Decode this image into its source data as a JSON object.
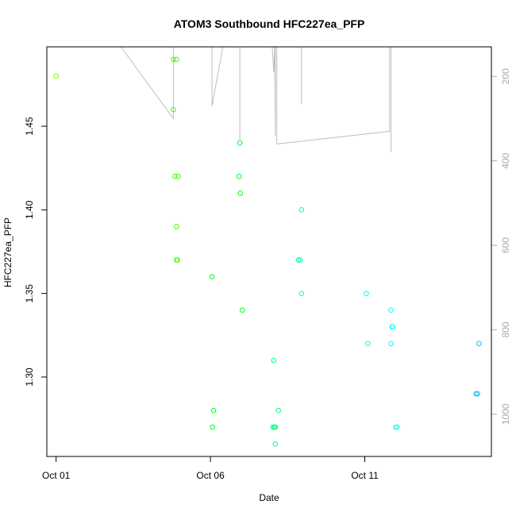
{
  "chart_data": {
    "type": "scatter",
    "title": "ATOM3 Southbound HFC227ea_PFP",
    "xlabel": "Date",
    "ylabel": "HFC227ea_PFP",
    "x_ticks": [
      {
        "label": "Oct 01",
        "day": 1
      },
      {
        "label": "Oct 06",
        "day": 6
      },
      {
        "label": "Oct 11",
        "day": 11
      }
    ],
    "y_ticks": [
      "1.30",
      "1.35",
      "1.40",
      "1.45"
    ],
    "y_tick_values": [
      1.3,
      1.35,
      1.4,
      1.45
    ],
    "xlim_days": [
      0.7,
      15.1
    ],
    "ylim": [
      1.2525,
      1.4975
    ],
    "right_axis": {
      "ticks": [
        "200",
        "400",
        "600",
        "800",
        "1000"
      ],
      "tick_values": [
        200,
        400,
        600,
        800,
        1000
      ],
      "ylim": [
        1100,
        130
      ],
      "reversed": true,
      "color": "#a9a9a9"
    },
    "grid": false,
    "legend": "none",
    "points": [
      {
        "day": 1.0,
        "y": 1.48,
        "color": "#80ff00"
      },
      {
        "day": 4.8,
        "y": 1.49,
        "color": "#40ff00"
      },
      {
        "day": 4.9,
        "y": 1.49,
        "color": "#40ff00"
      },
      {
        "day": 4.8,
        "y": 1.46,
        "color": "#40ff00"
      },
      {
        "day": 4.85,
        "y": 1.42,
        "color": "#40ff00"
      },
      {
        "day": 4.95,
        "y": 1.42,
        "color": "#40ff00"
      },
      {
        "day": 4.9,
        "y": 1.39,
        "color": "#40ff00"
      },
      {
        "day": 4.9,
        "y": 1.37,
        "color": "#40ff00"
      },
      {
        "day": 4.93,
        "y": 1.37,
        "color": "#40ff00"
      },
      {
        "day": 6.05,
        "y": 1.36,
        "color": "#00ff20"
      },
      {
        "day": 6.1,
        "y": 1.28,
        "color": "#00ff20"
      },
      {
        "day": 6.07,
        "y": 1.27,
        "color": "#00ff20"
      },
      {
        "day": 6.95,
        "y": 1.44,
        "color": "#00ff20"
      },
      {
        "day": 6.93,
        "y": 1.42,
        "color": "#00ff20"
      },
      {
        "day": 6.97,
        "y": 1.41,
        "color": "#00ff20"
      },
      {
        "day": 7.03,
        "y": 1.34,
        "color": "#00ff20"
      },
      {
        "day": 8.05,
        "y": 1.31,
        "color": "#00ff80"
      },
      {
        "day": 8.02,
        "y": 1.27,
        "color": "#00ff80"
      },
      {
        "day": 8.07,
        "y": 1.27,
        "color": "#00ff80"
      },
      {
        "day": 8.1,
        "y": 1.27,
        "color": "#00ff80"
      },
      {
        "day": 8.2,
        "y": 1.28,
        "color": "#00ff80"
      },
      {
        "day": 8.1,
        "y": 1.26,
        "color": "#00ff80"
      },
      {
        "day": 8.95,
        "y": 1.4,
        "color": "#00ffbf"
      },
      {
        "day": 8.85,
        "y": 1.37,
        "color": "#00ffbf"
      },
      {
        "day": 8.9,
        "y": 1.37,
        "color": "#00ffbf"
      },
      {
        "day": 8.95,
        "y": 1.35,
        "color": "#00ffbf"
      },
      {
        "day": 11.05,
        "y": 1.35,
        "color": "#00ffff"
      },
      {
        "day": 11.1,
        "y": 1.32,
        "color": "#00ffff"
      },
      {
        "day": 11.85,
        "y": 1.34,
        "color": "#00ffff"
      },
      {
        "day": 11.88,
        "y": 1.33,
        "color": "#00ffff"
      },
      {
        "day": 11.9,
        "y": 1.33,
        "color": "#00ffff"
      },
      {
        "day": 11.85,
        "y": 1.32,
        "color": "#00ffff"
      },
      {
        "day": 12.0,
        "y": 1.27,
        "color": "#00ffff"
      },
      {
        "day": 12.05,
        "y": 1.27,
        "color": "#00ffff"
      },
      {
        "day": 14.6,
        "y": 1.29,
        "color": "#00bfff"
      },
      {
        "day": 14.65,
        "y": 1.29,
        "color": "#00bfff"
      },
      {
        "day": 14.7,
        "y": 1.32,
        "color": "#00bfff"
      }
    ],
    "altitude_line_color": "#bebebe",
    "altitude_track": [
      {
        "day": 3.1,
        "alt": 130
      },
      {
        "day": 4.8,
        "alt": 300
      },
      {
        "day": 4.8,
        "alt": 130
      },
      {
        "day": 6.05,
        "alt": 130
      },
      {
        "day": 6.05,
        "alt": 270
      },
      {
        "day": 6.4,
        "alt": 130
      },
      {
        "day": 6.95,
        "alt": 130
      },
      {
        "day": 6.95,
        "alt": 350
      },
      {
        "day": 6.95,
        "alt": 130
      },
      {
        "day": 8.0,
        "alt": 130
      },
      {
        "day": 8.05,
        "alt": 190
      },
      {
        "day": 8.08,
        "alt": 130
      },
      {
        "day": 8.1,
        "alt": 340
      },
      {
        "day": 8.1,
        "alt": 130
      },
      {
        "day": 8.15,
        "alt": 130
      },
      {
        "day": 8.15,
        "alt": 360
      },
      {
        "day": 11.8,
        "alt": 330
      },
      {
        "day": 11.8,
        "alt": 130
      },
      {
        "day": 11.85,
        "alt": 130
      },
      {
        "day": 11.85,
        "alt": 380
      },
      {
        "day": 11.85,
        "alt": 130
      }
    ],
    "altitude_extra_segments": [
      [
        {
          "day": 8.95,
          "alt": 130
        },
        {
          "day": 8.95,
          "alt": 265
        }
      ]
    ]
  }
}
